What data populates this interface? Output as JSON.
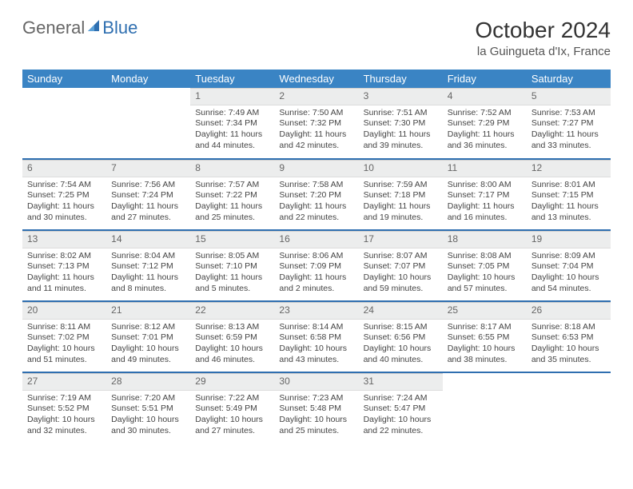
{
  "logo": {
    "word1": "General",
    "word2": "Blue"
  },
  "title": {
    "month": "October 2024",
    "location": "la Guingueta d'Ix, France"
  },
  "weekdays": [
    "Sunday",
    "Monday",
    "Tuesday",
    "Wednesday",
    "Thursday",
    "Friday",
    "Saturday"
  ],
  "colors": {
    "header_bg": "#3a84c4",
    "accent": "#2f6fb0",
    "daynum_bg": "#eceded",
    "text": "#444"
  },
  "weeks": [
    [
      {
        "day": "",
        "sunrise": "",
        "sunset": "",
        "daylight": ""
      },
      {
        "day": "",
        "sunrise": "",
        "sunset": "",
        "daylight": ""
      },
      {
        "day": "1",
        "sunrise": "Sunrise: 7:49 AM",
        "sunset": "Sunset: 7:34 PM",
        "daylight": "Daylight: 11 hours and 44 minutes."
      },
      {
        "day": "2",
        "sunrise": "Sunrise: 7:50 AM",
        "sunset": "Sunset: 7:32 PM",
        "daylight": "Daylight: 11 hours and 42 minutes."
      },
      {
        "day": "3",
        "sunrise": "Sunrise: 7:51 AM",
        "sunset": "Sunset: 7:30 PM",
        "daylight": "Daylight: 11 hours and 39 minutes."
      },
      {
        "day": "4",
        "sunrise": "Sunrise: 7:52 AM",
        "sunset": "Sunset: 7:29 PM",
        "daylight": "Daylight: 11 hours and 36 minutes."
      },
      {
        "day": "5",
        "sunrise": "Sunrise: 7:53 AM",
        "sunset": "Sunset: 7:27 PM",
        "daylight": "Daylight: 11 hours and 33 minutes."
      }
    ],
    [
      {
        "day": "6",
        "sunrise": "Sunrise: 7:54 AM",
        "sunset": "Sunset: 7:25 PM",
        "daylight": "Daylight: 11 hours and 30 minutes."
      },
      {
        "day": "7",
        "sunrise": "Sunrise: 7:56 AM",
        "sunset": "Sunset: 7:24 PM",
        "daylight": "Daylight: 11 hours and 27 minutes."
      },
      {
        "day": "8",
        "sunrise": "Sunrise: 7:57 AM",
        "sunset": "Sunset: 7:22 PM",
        "daylight": "Daylight: 11 hours and 25 minutes."
      },
      {
        "day": "9",
        "sunrise": "Sunrise: 7:58 AM",
        "sunset": "Sunset: 7:20 PM",
        "daylight": "Daylight: 11 hours and 22 minutes."
      },
      {
        "day": "10",
        "sunrise": "Sunrise: 7:59 AM",
        "sunset": "Sunset: 7:18 PM",
        "daylight": "Daylight: 11 hours and 19 minutes."
      },
      {
        "day": "11",
        "sunrise": "Sunrise: 8:00 AM",
        "sunset": "Sunset: 7:17 PM",
        "daylight": "Daylight: 11 hours and 16 minutes."
      },
      {
        "day": "12",
        "sunrise": "Sunrise: 8:01 AM",
        "sunset": "Sunset: 7:15 PM",
        "daylight": "Daylight: 11 hours and 13 minutes."
      }
    ],
    [
      {
        "day": "13",
        "sunrise": "Sunrise: 8:02 AM",
        "sunset": "Sunset: 7:13 PM",
        "daylight": "Daylight: 11 hours and 11 minutes."
      },
      {
        "day": "14",
        "sunrise": "Sunrise: 8:04 AM",
        "sunset": "Sunset: 7:12 PM",
        "daylight": "Daylight: 11 hours and 8 minutes."
      },
      {
        "day": "15",
        "sunrise": "Sunrise: 8:05 AM",
        "sunset": "Sunset: 7:10 PM",
        "daylight": "Daylight: 11 hours and 5 minutes."
      },
      {
        "day": "16",
        "sunrise": "Sunrise: 8:06 AM",
        "sunset": "Sunset: 7:09 PM",
        "daylight": "Daylight: 11 hours and 2 minutes."
      },
      {
        "day": "17",
        "sunrise": "Sunrise: 8:07 AM",
        "sunset": "Sunset: 7:07 PM",
        "daylight": "Daylight: 10 hours and 59 minutes."
      },
      {
        "day": "18",
        "sunrise": "Sunrise: 8:08 AM",
        "sunset": "Sunset: 7:05 PM",
        "daylight": "Daylight: 10 hours and 57 minutes."
      },
      {
        "day": "19",
        "sunrise": "Sunrise: 8:09 AM",
        "sunset": "Sunset: 7:04 PM",
        "daylight": "Daylight: 10 hours and 54 minutes."
      }
    ],
    [
      {
        "day": "20",
        "sunrise": "Sunrise: 8:11 AM",
        "sunset": "Sunset: 7:02 PM",
        "daylight": "Daylight: 10 hours and 51 minutes."
      },
      {
        "day": "21",
        "sunrise": "Sunrise: 8:12 AM",
        "sunset": "Sunset: 7:01 PM",
        "daylight": "Daylight: 10 hours and 49 minutes."
      },
      {
        "day": "22",
        "sunrise": "Sunrise: 8:13 AM",
        "sunset": "Sunset: 6:59 PM",
        "daylight": "Daylight: 10 hours and 46 minutes."
      },
      {
        "day": "23",
        "sunrise": "Sunrise: 8:14 AM",
        "sunset": "Sunset: 6:58 PM",
        "daylight": "Daylight: 10 hours and 43 minutes."
      },
      {
        "day": "24",
        "sunrise": "Sunrise: 8:15 AM",
        "sunset": "Sunset: 6:56 PM",
        "daylight": "Daylight: 10 hours and 40 minutes."
      },
      {
        "day": "25",
        "sunrise": "Sunrise: 8:17 AM",
        "sunset": "Sunset: 6:55 PM",
        "daylight": "Daylight: 10 hours and 38 minutes."
      },
      {
        "day": "26",
        "sunrise": "Sunrise: 8:18 AM",
        "sunset": "Sunset: 6:53 PM",
        "daylight": "Daylight: 10 hours and 35 minutes."
      }
    ],
    [
      {
        "day": "27",
        "sunrise": "Sunrise: 7:19 AM",
        "sunset": "Sunset: 5:52 PM",
        "daylight": "Daylight: 10 hours and 32 minutes."
      },
      {
        "day": "28",
        "sunrise": "Sunrise: 7:20 AM",
        "sunset": "Sunset: 5:51 PM",
        "daylight": "Daylight: 10 hours and 30 minutes."
      },
      {
        "day": "29",
        "sunrise": "Sunrise: 7:22 AM",
        "sunset": "Sunset: 5:49 PM",
        "daylight": "Daylight: 10 hours and 27 minutes."
      },
      {
        "day": "30",
        "sunrise": "Sunrise: 7:23 AM",
        "sunset": "Sunset: 5:48 PM",
        "daylight": "Daylight: 10 hours and 25 minutes."
      },
      {
        "day": "31",
        "sunrise": "Sunrise: 7:24 AM",
        "sunset": "Sunset: 5:47 PM",
        "daylight": "Daylight: 10 hours and 22 minutes."
      },
      {
        "day": "",
        "sunrise": "",
        "sunset": "",
        "daylight": ""
      },
      {
        "day": "",
        "sunrise": "",
        "sunset": "",
        "daylight": ""
      }
    ]
  ]
}
